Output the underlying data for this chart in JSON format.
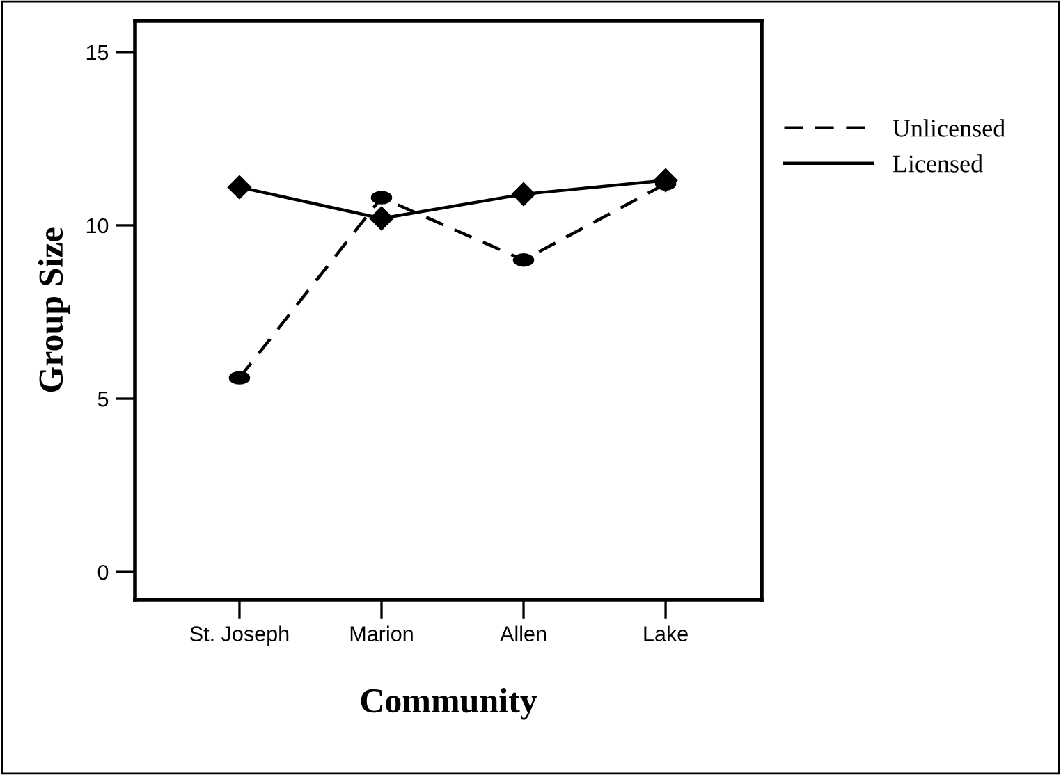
{
  "chart_data": {
    "type": "line",
    "xlabel": "Community",
    "ylabel": "Group Size",
    "categories": [
      "St. Joseph",
      "Marion",
      "Allen",
      "Lake"
    ],
    "series": [
      {
        "name": "Unlicensed",
        "color": "#000000",
        "values": [
          5.6,
          10.8,
          9.0,
          11.2
        ],
        "line_style": "dashed",
        "marker": "circle"
      },
      {
        "name": "Licensed",
        "color": "#000000",
        "values": [
          11.1,
          10.2,
          10.9,
          11.3
        ],
        "line_style": "solid",
        "marker": "diamond"
      }
    ],
    "ylim": [
      -0.8,
      15.9
    ],
    "yticks": [
      0,
      5,
      10,
      15
    ],
    "grid": false,
    "legend": "right"
  }
}
